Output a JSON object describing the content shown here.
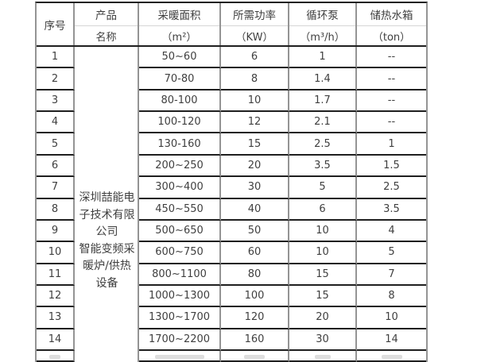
{
  "colors": {
    "horizontal_line": "#1f1f1f",
    "vertical_line": "#949494",
    "faint_divider": "#d6d6d6",
    "text": "#3f3f3f",
    "background": "#ffffff"
  },
  "table": {
    "columns": [
      {
        "key": "no",
        "title": "序号",
        "unit": ""
      },
      {
        "key": "product",
        "title": "产品",
        "unit": "名称"
      },
      {
        "key": "area",
        "title": "采暖面积",
        "unit": "（m²）"
      },
      {
        "key": "power",
        "title": "所需功率",
        "unit": "（KW）"
      },
      {
        "key": "pump",
        "title": "循环泵",
        "unit": "（m³/h）"
      },
      {
        "key": "tank",
        "title": "储热水箱",
        "unit": "（ton）"
      }
    ],
    "product_name_lines": "深圳喆能电\n子技术有限\n公司\n智能变频采\n暖炉/供热\n设备",
    "rows": [
      {
        "no": "1",
        "area": "50~60",
        "power": "6",
        "pump": "1",
        "tank": "--"
      },
      {
        "no": "2",
        "area": "70-80",
        "power": "8",
        "pump": "1.4",
        "tank": "--"
      },
      {
        "no": "3",
        "area": "80-100",
        "power": "10",
        "pump": "1.7",
        "tank": "--"
      },
      {
        "no": "4",
        "area": "100-120",
        "power": "12",
        "pump": "2.1",
        "tank": "--"
      },
      {
        "no": "5",
        "area": "130-160",
        "power": "15",
        "pump": "2.5",
        "tank": "1"
      },
      {
        "no": "6",
        "area": "200~250",
        "power": "20",
        "pump": "3.5",
        "tank": "1.5"
      },
      {
        "no": "7",
        "area": "300~400",
        "power": "30",
        "pump": "5",
        "tank": "2.5"
      },
      {
        "no": "8",
        "area": "450~550",
        "power": "40",
        "pump": "6",
        "tank": "3.5"
      },
      {
        "no": "9",
        "area": "500~650",
        "power": "50",
        "pump": "10",
        "tank": "4"
      },
      {
        "no": "10",
        "area": "600~750",
        "power": "60",
        "pump": "10",
        "tank": "5"
      },
      {
        "no": "11",
        "area": "800~1100",
        "power": "80",
        "pump": "15",
        "tank": "7"
      },
      {
        "no": "12",
        "area": "1000~1300",
        "power": "100",
        "pump": "15",
        "tank": "8"
      },
      {
        "no": "13",
        "area": "1300~1700",
        "power": "120",
        "pump": "20",
        "tank": "10"
      },
      {
        "no": "14",
        "area": "1700~2200",
        "power": "160",
        "pump": "30",
        "tank": "14"
      }
    ]
  }
}
